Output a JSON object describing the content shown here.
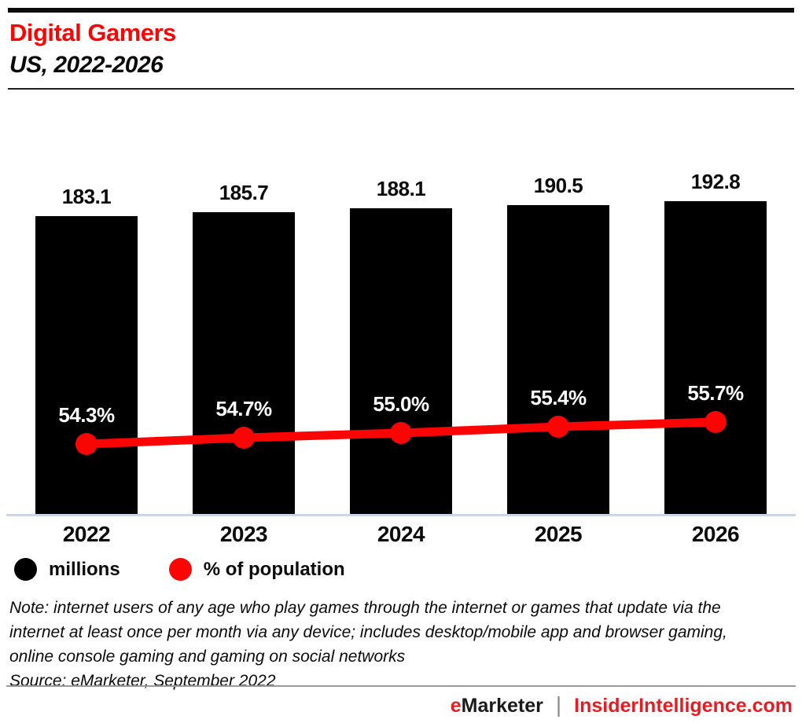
{
  "header": {
    "title": "Digital Gamers",
    "subtitle": "US, 2022-2026"
  },
  "chart_data": {
    "type": "bar",
    "title": "Digital Gamers",
    "subtitle": "US, 2022-2026",
    "categories": [
      "2022",
      "2023",
      "2024",
      "2025",
      "2026"
    ],
    "series": [
      {
        "name": "millions",
        "type": "bar",
        "color": "#000000",
        "values": [
          183.1,
          185.7,
          188.1,
          190.5,
          192.8
        ],
        "labels": [
          "183.1",
          "185.7",
          "188.1",
          "190.5",
          "192.8"
        ]
      },
      {
        "name": "% of population",
        "type": "line",
        "color": "#fb0404",
        "values": [
          54.3,
          54.7,
          55.0,
          55.4,
          55.7
        ],
        "labels": [
          "54.3%",
          "54.7%",
          "55.0%",
          "55.4%",
          "55.7%"
        ]
      }
    ],
    "xlabel": "",
    "ylabel": "",
    "grid": false,
    "legend_position": "bottom-left"
  },
  "legend": {
    "items": [
      {
        "label": "millions",
        "color": "#000000"
      },
      {
        "label": "% of population",
        "color": "#fb0404"
      }
    ]
  },
  "note": {
    "text": "Note: internet users of any age who play games through the internet or games that update via the internet at least once per month via any device; includes desktop/mobile app and browser gaming, online console gaming and gaming on social networks",
    "source": "Source: eMarketer, September 2022"
  },
  "footer": {
    "brand_first_letter": "e",
    "brand_rest": "Marketer",
    "separator": "|",
    "site": "InsiderIntelligence.com"
  },
  "colors": {
    "accent_red": "#fb0404",
    "footer_red": "#e61c23",
    "bar_black": "#000000",
    "baseline_gray": "#ccd4e8",
    "header_rule": "#1f1f1f",
    "footer_rule": "#9a9a9a"
  }
}
